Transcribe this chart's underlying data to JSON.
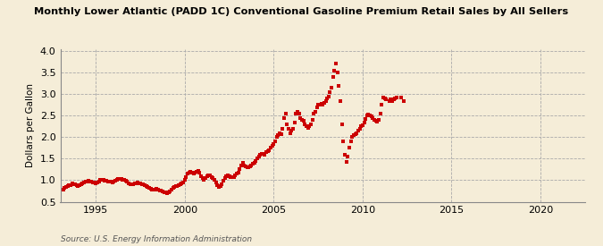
{
  "title": "Monthly Lower Atlantic (PADD 1C) Conventional Gasoline Premium Retail Sales by All Sellers",
  "ylabel": "Dollars per Gallon",
  "source": "Source: U.S. Energy Information Administration",
  "ylim": [
    0.5,
    4.05
  ],
  "xlim": [
    1993.0,
    2022.5
  ],
  "yticks": [
    0.5,
    1.0,
    1.5,
    2.0,
    2.5,
    3.0,
    3.5,
    4.0
  ],
  "xticks": [
    1995,
    2000,
    2005,
    2010,
    2015,
    2020
  ],
  "bg_color": "#F5EDD8",
  "dot_color": "#CC0000",
  "data": [
    [
      1993.17,
      0.79
    ],
    [
      1993.25,
      0.82
    ],
    [
      1993.33,
      0.84
    ],
    [
      1993.42,
      0.87
    ],
    [
      1993.5,
      0.88
    ],
    [
      1993.58,
      0.89
    ],
    [
      1993.67,
      0.92
    ],
    [
      1993.75,
      0.91
    ],
    [
      1993.83,
      0.9
    ],
    [
      1993.92,
      0.88
    ],
    [
      1994.0,
      0.87
    ],
    [
      1994.08,
      0.88
    ],
    [
      1994.17,
      0.9
    ],
    [
      1994.25,
      0.93
    ],
    [
      1994.33,
      0.95
    ],
    [
      1994.42,
      0.96
    ],
    [
      1994.5,
      0.97
    ],
    [
      1994.58,
      0.98
    ],
    [
      1994.67,
      0.97
    ],
    [
      1994.75,
      0.96
    ],
    [
      1994.83,
      0.95
    ],
    [
      1994.92,
      0.94
    ],
    [
      1995.0,
      0.93
    ],
    [
      1995.08,
      0.95
    ],
    [
      1995.17,
      0.97
    ],
    [
      1995.25,
      1.0
    ],
    [
      1995.33,
      1.02
    ],
    [
      1995.42,
      1.01
    ],
    [
      1995.5,
      0.99
    ],
    [
      1995.58,
      0.98
    ],
    [
      1995.67,
      0.97
    ],
    [
      1995.75,
      0.97
    ],
    [
      1995.83,
      0.96
    ],
    [
      1995.92,
      0.95
    ],
    [
      1996.0,
      0.96
    ],
    [
      1996.08,
      0.98
    ],
    [
      1996.17,
      1.0
    ],
    [
      1996.25,
      1.03
    ],
    [
      1996.33,
      1.04
    ],
    [
      1996.42,
      1.03
    ],
    [
      1996.5,
      1.01
    ],
    [
      1996.58,
      1.0
    ],
    [
      1996.67,
      0.99
    ],
    [
      1996.75,
      0.96
    ],
    [
      1996.83,
      0.93
    ],
    [
      1996.92,
      0.91
    ],
    [
      1997.0,
      0.9
    ],
    [
      1997.08,
      0.91
    ],
    [
      1997.17,
      0.92
    ],
    [
      1997.25,
      0.93
    ],
    [
      1997.33,
      0.94
    ],
    [
      1997.42,
      0.93
    ],
    [
      1997.5,
      0.92
    ],
    [
      1997.58,
      0.91
    ],
    [
      1997.67,
      0.9
    ],
    [
      1997.75,
      0.88
    ],
    [
      1997.83,
      0.86
    ],
    [
      1997.92,
      0.84
    ],
    [
      1998.0,
      0.82
    ],
    [
      1998.08,
      0.8
    ],
    [
      1998.17,
      0.79
    ],
    [
      1998.25,
      0.78
    ],
    [
      1998.33,
      0.79
    ],
    [
      1998.42,
      0.8
    ],
    [
      1998.5,
      0.79
    ],
    [
      1998.58,
      0.77
    ],
    [
      1998.67,
      0.75
    ],
    [
      1998.75,
      0.73
    ],
    [
      1998.83,
      0.72
    ],
    [
      1998.92,
      0.71
    ],
    [
      1999.0,
      0.7
    ],
    [
      1999.08,
      0.71
    ],
    [
      1999.17,
      0.73
    ],
    [
      1999.25,
      0.78
    ],
    [
      1999.33,
      0.83
    ],
    [
      1999.42,
      0.85
    ],
    [
      1999.5,
      0.86
    ],
    [
      1999.58,
      0.87
    ],
    [
      1999.67,
      0.89
    ],
    [
      1999.75,
      0.9
    ],
    [
      1999.83,
      0.92
    ],
    [
      1999.92,
      0.95
    ],
    [
      2000.0,
      1.0
    ],
    [
      2000.08,
      1.08
    ],
    [
      2000.17,
      1.15
    ],
    [
      2000.25,
      1.18
    ],
    [
      2000.33,
      1.2
    ],
    [
      2000.42,
      1.18
    ],
    [
      2000.5,
      1.15
    ],
    [
      2000.58,
      1.18
    ],
    [
      2000.67,
      1.2
    ],
    [
      2000.75,
      1.22
    ],
    [
      2000.83,
      1.18
    ],
    [
      2000.92,
      1.1
    ],
    [
      2001.0,
      1.05
    ],
    [
      2001.08,
      1.02
    ],
    [
      2001.17,
      1.05
    ],
    [
      2001.25,
      1.1
    ],
    [
      2001.33,
      1.12
    ],
    [
      2001.42,
      1.11
    ],
    [
      2001.5,
      1.08
    ],
    [
      2001.58,
      1.05
    ],
    [
      2001.67,
      1.02
    ],
    [
      2001.75,
      0.95
    ],
    [
      2001.83,
      0.88
    ],
    [
      2001.92,
      0.85
    ],
    [
      2002.0,
      0.87
    ],
    [
      2002.08,
      0.9
    ],
    [
      2002.17,
      0.98
    ],
    [
      2002.25,
      1.05
    ],
    [
      2002.33,
      1.1
    ],
    [
      2002.42,
      1.12
    ],
    [
      2002.5,
      1.1
    ],
    [
      2002.58,
      1.08
    ],
    [
      2002.67,
      1.07
    ],
    [
      2002.75,
      1.08
    ],
    [
      2002.83,
      1.12
    ],
    [
      2002.92,
      1.15
    ],
    [
      2003.0,
      1.18
    ],
    [
      2003.08,
      1.25
    ],
    [
      2003.17,
      1.35
    ],
    [
      2003.25,
      1.4
    ],
    [
      2003.33,
      1.35
    ],
    [
      2003.42,
      1.32
    ],
    [
      2003.5,
      1.3
    ],
    [
      2003.58,
      1.3
    ],
    [
      2003.67,
      1.32
    ],
    [
      2003.75,
      1.35
    ],
    [
      2003.83,
      1.38
    ],
    [
      2003.92,
      1.4
    ],
    [
      2004.0,
      1.45
    ],
    [
      2004.08,
      1.5
    ],
    [
      2004.17,
      1.55
    ],
    [
      2004.25,
      1.6
    ],
    [
      2004.33,
      1.62
    ],
    [
      2004.42,
      1.62
    ],
    [
      2004.5,
      1.6
    ],
    [
      2004.58,
      1.65
    ],
    [
      2004.67,
      1.68
    ],
    [
      2004.75,
      1.7
    ],
    [
      2004.83,
      1.75
    ],
    [
      2004.92,
      1.8
    ],
    [
      2005.0,
      1.85
    ],
    [
      2005.08,
      1.9
    ],
    [
      2005.17,
      2.0
    ],
    [
      2005.25,
      2.05
    ],
    [
      2005.33,
      2.1
    ],
    [
      2005.42,
      2.08
    ],
    [
      2005.5,
      2.2
    ],
    [
      2005.58,
      2.45
    ],
    [
      2005.67,
      2.55
    ],
    [
      2005.75,
      2.3
    ],
    [
      2005.83,
      2.2
    ],
    [
      2005.92,
      2.1
    ],
    [
      2006.0,
      2.15
    ],
    [
      2006.08,
      2.2
    ],
    [
      2006.17,
      2.35
    ],
    [
      2006.25,
      2.55
    ],
    [
      2006.33,
      2.6
    ],
    [
      2006.42,
      2.55
    ],
    [
      2006.5,
      2.45
    ],
    [
      2006.58,
      2.4
    ],
    [
      2006.67,
      2.38
    ],
    [
      2006.75,
      2.3
    ],
    [
      2006.83,
      2.25
    ],
    [
      2006.92,
      2.22
    ],
    [
      2007.0,
      2.25
    ],
    [
      2007.08,
      2.3
    ],
    [
      2007.17,
      2.4
    ],
    [
      2007.25,
      2.55
    ],
    [
      2007.33,
      2.6
    ],
    [
      2007.42,
      2.7
    ],
    [
      2007.5,
      2.75
    ],
    [
      2007.58,
      2.75
    ],
    [
      2007.67,
      2.78
    ],
    [
      2007.75,
      2.75
    ],
    [
      2007.83,
      2.8
    ],
    [
      2007.92,
      2.85
    ],
    [
      2008.0,
      2.9
    ],
    [
      2008.08,
      2.95
    ],
    [
      2008.17,
      3.05
    ],
    [
      2008.25,
      3.15
    ],
    [
      2008.33,
      3.4
    ],
    [
      2008.42,
      3.55
    ],
    [
      2008.5,
      3.72
    ],
    [
      2008.58,
      3.5
    ],
    [
      2008.67,
      3.2
    ],
    [
      2008.75,
      2.85
    ],
    [
      2008.83,
      2.3
    ],
    [
      2008.92,
      1.9
    ],
    [
      2009.0,
      1.6
    ],
    [
      2009.08,
      1.42
    ],
    [
      2009.17,
      1.55
    ],
    [
      2009.25,
      1.75
    ],
    [
      2009.33,
      1.9
    ],
    [
      2009.42,
      2.0
    ],
    [
      2009.5,
      2.05
    ],
    [
      2009.58,
      2.08
    ],
    [
      2009.67,
      2.1
    ],
    [
      2009.75,
      2.15
    ],
    [
      2009.83,
      2.2
    ],
    [
      2009.92,
      2.25
    ],
    [
      2010.0,
      2.28
    ],
    [
      2010.08,
      2.35
    ],
    [
      2010.17,
      2.42
    ],
    [
      2010.25,
      2.5
    ],
    [
      2010.33,
      2.52
    ],
    [
      2010.42,
      2.5
    ],
    [
      2010.5,
      2.48
    ],
    [
      2010.58,
      2.45
    ],
    [
      2010.67,
      2.4
    ],
    [
      2010.75,
      2.38
    ],
    [
      2010.83,
      2.36
    ],
    [
      2010.92,
      2.4
    ],
    [
      2011.0,
      2.55
    ],
    [
      2011.08,
      2.75
    ],
    [
      2011.17,
      2.92
    ],
    [
      2011.25,
      2.9
    ],
    [
      2011.33,
      2.88
    ],
    [
      2011.5,
      2.85
    ],
    [
      2011.58,
      2.88
    ],
    [
      2011.67,
      2.85
    ],
    [
      2011.75,
      2.88
    ],
    [
      2011.83,
      2.9
    ],
    [
      2011.92,
      2.92
    ],
    [
      2012.17,
      2.92
    ],
    [
      2012.33,
      2.85
    ]
  ]
}
